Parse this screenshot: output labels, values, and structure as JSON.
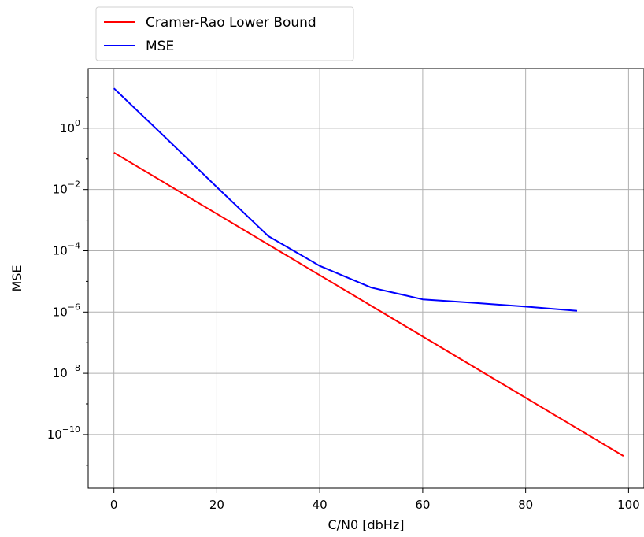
{
  "chart_data": {
    "type": "line",
    "title": "",
    "xlabel": "C/N0 [dbHz]",
    "ylabel": "MSE",
    "xscale": "linear",
    "yscale": "log",
    "xlim": [
      -5,
      103
    ],
    "ylim_log10": [
      -11.75,
      1.95
    ],
    "xticks": [
      0,
      20,
      40,
      60,
      80,
      100
    ],
    "xtick_labels": [
      "0",
      "20",
      "40",
      "60",
      "80",
      "100"
    ],
    "yticks_exponent": [
      0,
      -2,
      -4,
      -6,
      -8,
      -10
    ],
    "ytick_base": "10",
    "ytick_exponent_labels": [
      "0",
      "−2",
      "−4",
      "−6",
      "−8",
      "−10"
    ],
    "grid": true,
    "legend_position": "top-left, above plot",
    "series": [
      {
        "name": "Cramer-Rao Lower Bound",
        "color": "#ff0000",
        "x": [
          0,
          99
        ],
        "y": [
          0.16,
          2e-11
        ]
      },
      {
        "name": "MSE",
        "color": "#0000ff",
        "x": [
          0,
          10,
          20,
          30,
          40,
          50,
          60,
          70,
          80,
          90
        ],
        "y": [
          20,
          0.5,
          0.012,
          0.0003,
          3.2e-05,
          6.3e-06,
          2.6e-06,
          2e-06,
          1.5e-06,
          1.1e-06
        ]
      }
    ]
  }
}
